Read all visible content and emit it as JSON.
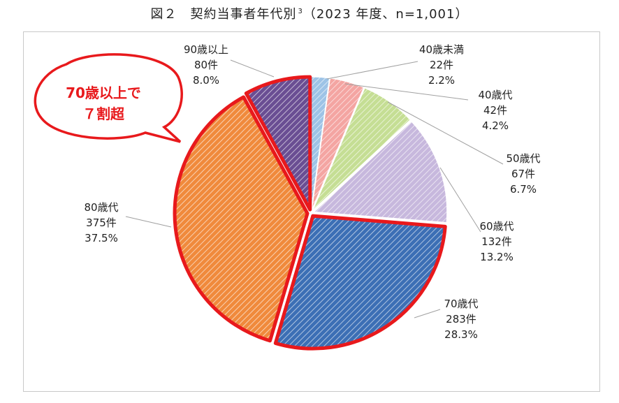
{
  "title": {
    "text": "図２　契約当事者年代別",
    "superscript": "3",
    "suffix": "（2023 年度、n=1,001）"
  },
  "callout": {
    "line1": "70歳以上で",
    "line2": "７割超",
    "color": "#e8191c"
  },
  "chart_data": {
    "type": "pie",
    "title": "図２　契約当事者年代別",
    "n": 1001,
    "unit": "件",
    "slices": [
      {
        "label": "40歳未満",
        "count": 22,
        "count_label": "22件",
        "percent": 2.2,
        "percent_label": "2.2%",
        "color": "#9dc3e6"
      },
      {
        "label": "40歳代",
        "count": 42,
        "count_label": "42件",
        "percent": 4.2,
        "percent_label": "4.2%",
        "color": "#f4a5a2"
      },
      {
        "label": "50歳代",
        "count": 67,
        "count_label": "67件",
        "percent": 6.7,
        "percent_label": "6.7%",
        "color": "#c5de94"
      },
      {
        "label": "60歳代",
        "count": 132,
        "count_label": "132件",
        "percent": 13.2,
        "percent_label": "13.2%",
        "color": "#c7b8dd"
      },
      {
        "label": "70歳代",
        "count": 283,
        "count_label": "283件",
        "percent": 28.3,
        "percent_label": "28.3%",
        "color": "#3c6fb5"
      },
      {
        "label": "80歳代",
        "count": 375,
        "count_label": "375件",
        "percent": 37.5,
        "percent_label": "37.5%",
        "color": "#f08a3c"
      },
      {
        "label": "90歳以上",
        "count": 80,
        "count_label": "80件",
        "percent": 8.0,
        "percent_label": "8.0%",
        "color": "#6a4e93"
      }
    ],
    "highlighted": [
      "70歳代",
      "80歳代",
      "90歳以上"
    ],
    "highlight_color": "#e8191c"
  }
}
